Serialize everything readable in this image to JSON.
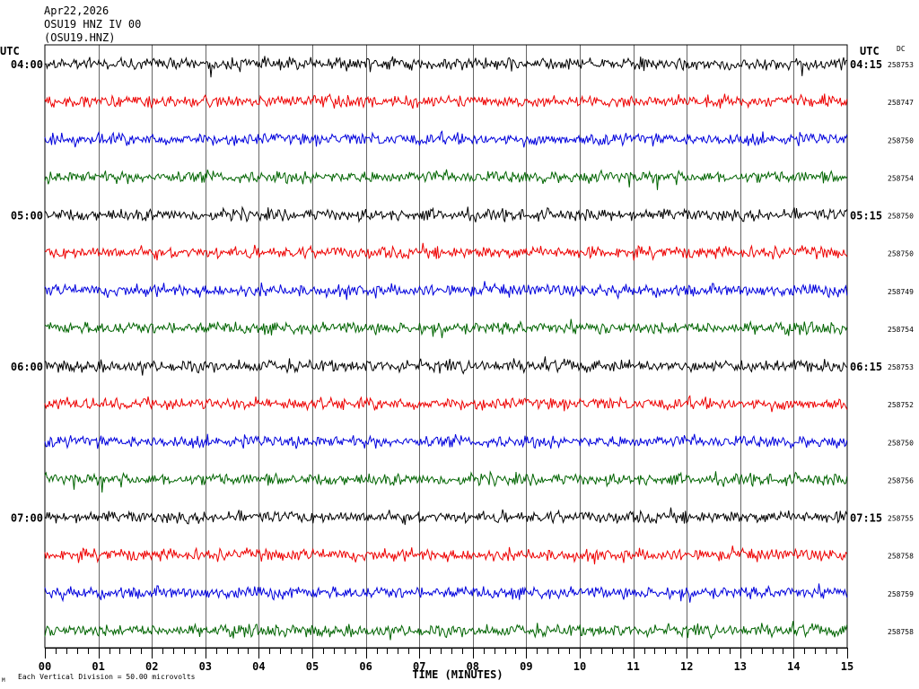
{
  "header": {
    "date": "Apr22,2026",
    "station": "OSU19 HNZ IV 00",
    "channel": "(OSU19.HNZ)"
  },
  "chart_data": {
    "type": "line",
    "left_axis_title": "UTC",
    "right_axis_title": "UTC",
    "dc_label": "DC",
    "xlabel": "TIME (MINUTES)",
    "xlim": [
      0,
      15
    ],
    "x_tick_labels": [
      "00",
      "01",
      "02",
      "03",
      "04",
      "05",
      "06",
      "07",
      "08",
      "09",
      "10",
      "11",
      "12",
      "13",
      "14",
      "15"
    ],
    "hour_labels_left": [
      "04:00",
      "05:00",
      "06:00",
      "07:00"
    ],
    "hour_labels_right": [
      "04:15",
      "05:15",
      "06:15",
      "07:15"
    ],
    "trace_colors": [
      "#000000",
      "#ee0000",
      "#0000dd",
      "#006400"
    ],
    "dc_values": [
      258753,
      258747,
      258750,
      258754,
      258750,
      258750,
      258749,
      258754,
      258753,
      258752,
      258750,
      258756,
      258755,
      258758,
      258759,
      258758
    ],
    "footer_text": "Each Vertical Division =   50.00 microvolts",
    "footer_mark": "M"
  }
}
